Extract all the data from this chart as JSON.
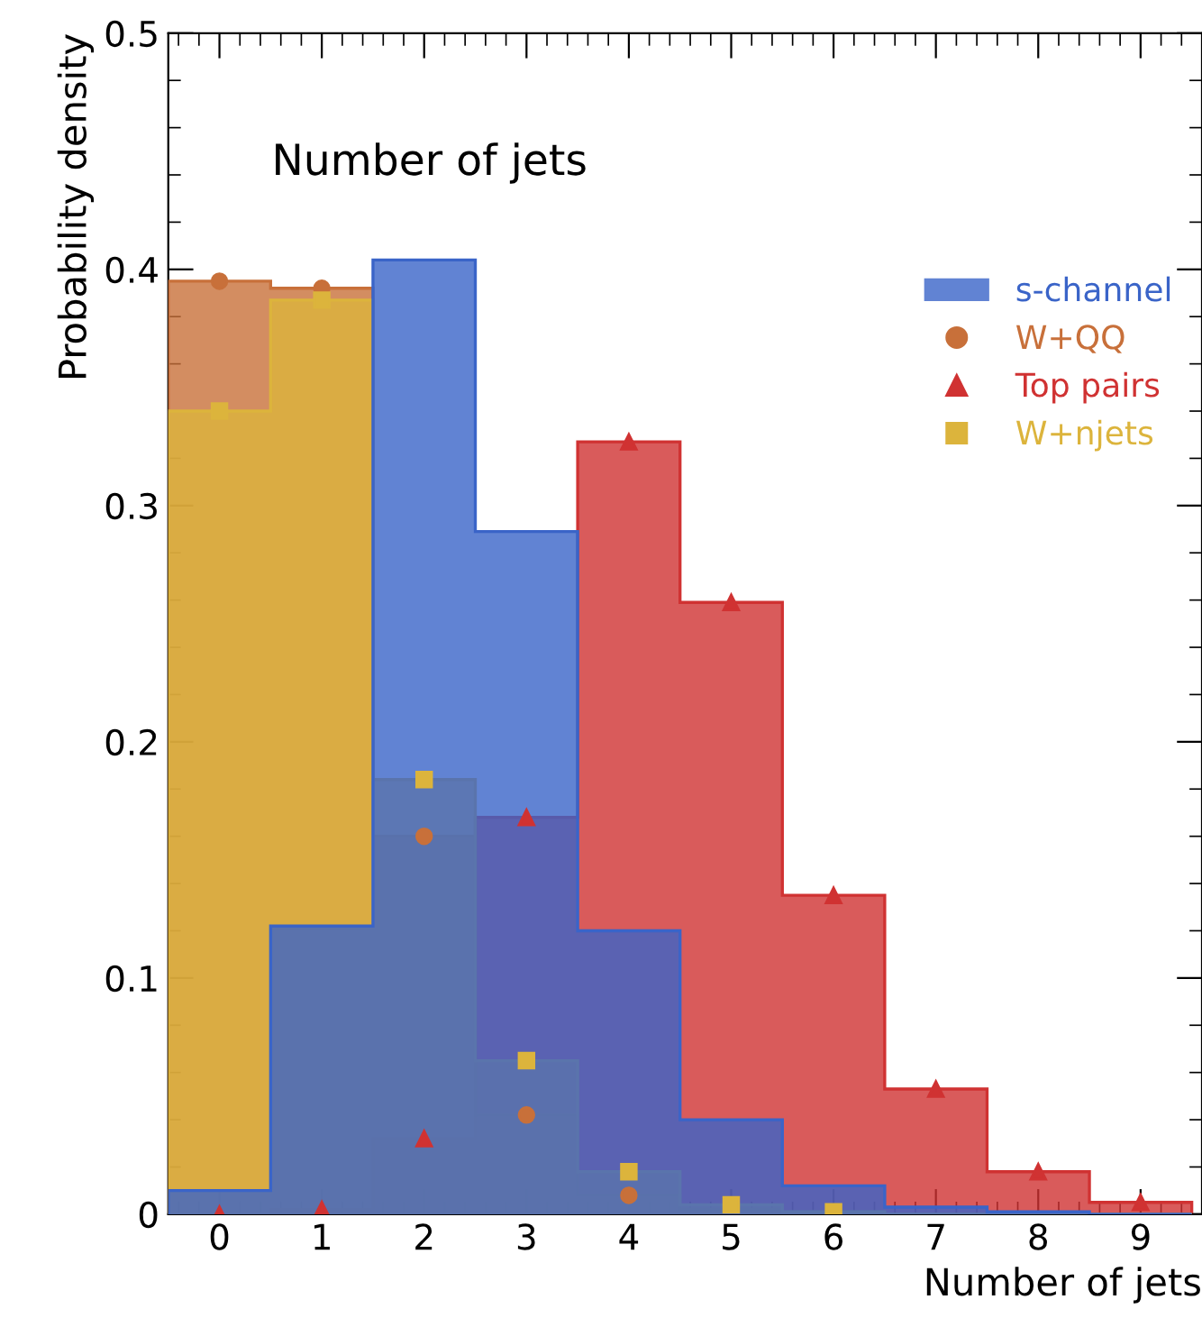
{
  "chart_data": {
    "type": "histogram",
    "title": "Number of jets",
    "xlabel": "Number of jets",
    "ylabel": "Probability density",
    "bins": [
      -0.5,
      0.5,
      1.5,
      2.5,
      3.5,
      4.5,
      5.5,
      6.5,
      7.5,
      8.5,
      9.5
    ],
    "series": [
      {
        "color": "#d03232",
        "values": [
          0,
          0.002,
          0.032,
          0.168,
          0.327,
          0.259,
          0.135,
          0.053,
          0.018,
          0.005
        ]
      },
      {
        "color": "#c8703a",
        "values": [
          0.395,
          0.392,
          0.16,
          0.042,
          0.008,
          0.002,
          0.001,
          0,
          0,
          0
        ]
      },
      {
        "color": "#dcb43c",
        "values": [
          0.34,
          0.387,
          0.184,
          0.065,
          0.018,
          0.004,
          0.001,
          0,
          0,
          0
        ]
      },
      {
        "name": "s-channel",
        "color": "#3a64c8",
        "values": [
          0.01,
          0.122,
          0.404,
          0.289,
          0.12,
          0.04,
          0.012,
          0.003,
          0.001,
          0
        ]
      },
      {
        "type": "scatter",
        "name": "W+QQ",
        "color": "#c8703a",
        "marker": "circle",
        "x": [
          0,
          1,
          2,
          3,
          4
        ],
        "values": [
          0.395,
          0.392,
          0.16,
          0.042,
          0.008
        ]
      },
      {
        "type": "scatter",
        "name": "Top pairs",
        "color": "#d03232",
        "marker": "triangle",
        "x": [
          0,
          1,
          2,
          3,
          4,
          5,
          6,
          7,
          8,
          9
        ],
        "values": [
          0,
          0.002,
          0.032,
          0.168,
          0.327,
          0.259,
          0.135,
          0.053,
          0.018,
          0.005
        ]
      },
      {
        "type": "scatter",
        "name": "W+njets",
        "color": "#dcb43c",
        "marker": "square",
        "x": [
          0,
          1,
          2,
          3,
          4,
          5,
          6
        ],
        "values": [
          0.34,
          0.387,
          0.184,
          0.065,
          0.018,
          0.004,
          0.001
        ]
      }
    ],
    "xlim": [
      -0.5,
      9.6
    ],
    "ylim": [
      0,
      0.5
    ],
    "xticks": [
      0,
      1,
      2,
      3,
      4,
      5,
      6,
      7,
      8,
      9
    ],
    "yticks": [
      0,
      0.1,
      0.2,
      0.3,
      0.4,
      0.5
    ],
    "legend": "right",
    "grid": false
  }
}
